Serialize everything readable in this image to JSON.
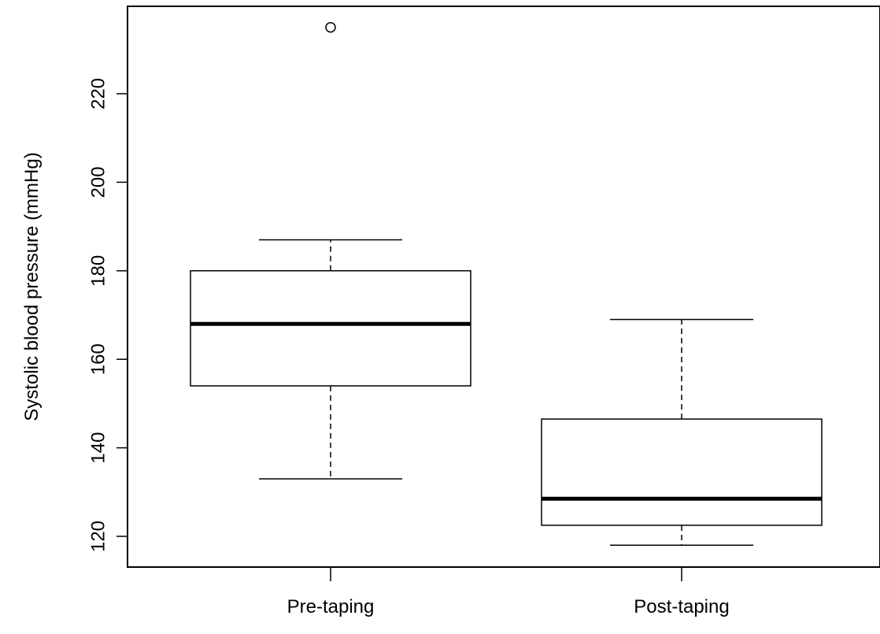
{
  "chart_data": {
    "type": "boxplot",
    "title": "",
    "xlabel": "",
    "ylabel": "Systolic blood pressure (mmHg)",
    "ylim": [
      113,
      238
    ],
    "yticks": [
      120,
      140,
      160,
      180,
      200,
      220
    ],
    "grid": false,
    "categories": [
      "Pre-taping",
      "Post-taping"
    ],
    "boxes": [
      {
        "label": "Pre-taping",
        "whisker_low": 133,
        "q1": 154,
        "median": 168,
        "q3": 180,
        "whisker_high": 187,
        "outliers": [
          235
        ]
      },
      {
        "label": "Post-taping",
        "whisker_low": 118,
        "q1": 122.5,
        "median": 128.5,
        "q3": 146.5,
        "whisker_high": 169,
        "outliers": []
      }
    ]
  }
}
